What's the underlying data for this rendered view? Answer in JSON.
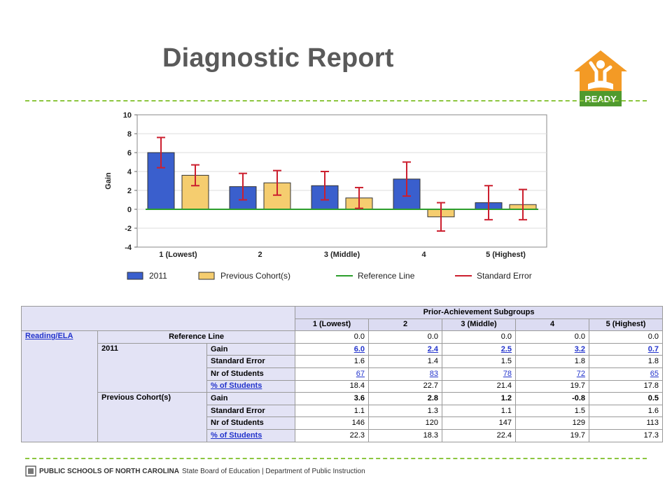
{
  "title": "Diagnostic Report",
  "logo_text": "READY",
  "colors": {
    "c2011": "#3a5fcd",
    "cPrev": "#f5cd6f",
    "ref": "#2c9e2c",
    "err": "#cc1f2e",
    "accent": "#8cc63f",
    "logo": "#f39a25"
  },
  "chart_data": {
    "type": "bar",
    "categories": [
      "1 (Lowest)",
      "2",
      "3 (Middle)",
      "4",
      "5 (Highest)"
    ],
    "ylabel": "Gain",
    "ylim": [
      -4,
      10
    ],
    "yticks": [
      "-4",
      "-2",
      "0",
      "2",
      "4",
      "6",
      "8",
      "10"
    ],
    "series": [
      {
        "name": "2011",
        "values": [
          6.0,
          2.4,
          2.5,
          3.2,
          0.7
        ],
        "error": [
          1.6,
          1.4,
          1.5,
          1.8,
          1.8
        ]
      },
      {
        "name": "Previous Cohort(s)",
        "values": [
          3.6,
          2.8,
          1.2,
          -0.8,
          0.5
        ],
        "error": [
          1.1,
          1.3,
          1.1,
          1.5,
          1.6
        ]
      }
    ],
    "legend": [
      "2011",
      "Previous Cohort(s)",
      "Reference Line",
      "Standard Error"
    ],
    "legend_position": "bottom"
  },
  "table": {
    "group_header": "Prior-Achievement Subgroups",
    "columns": [
      "1 (Lowest)",
      "2",
      "3 (Middle)",
      "4",
      "5 (Highest)"
    ],
    "subject": "Reading/ELA",
    "reference_label": "Reference Line",
    "reference": [
      "0.0",
      "0.0",
      "0.0",
      "0.0",
      "0.0"
    ],
    "cohort2011": {
      "label": "2011",
      "gain_label": "Gain",
      "gain": [
        "6.0",
        "2.4",
        "2.5",
        "3.2",
        "0.7"
      ],
      "se_label": "Standard Error",
      "se": [
        "1.6",
        "1.4",
        "1.5",
        "1.8",
        "1.8"
      ],
      "n_label": "Nr of Students",
      "n": [
        "67",
        "83",
        "78",
        "72",
        "65"
      ],
      "pct_label": "% of Students",
      "pct": [
        "18.4",
        "22.7",
        "21.4",
        "19.7",
        "17.8"
      ]
    },
    "previous": {
      "label": "Previous Cohort(s)",
      "gain_label": "Gain",
      "gain": [
        "3.6",
        "2.8",
        "1.2",
        "-0.8",
        "0.5"
      ],
      "se_label": "Standard Error",
      "se": [
        "1.1",
        "1.3",
        "1.1",
        "1.5",
        "1.6"
      ],
      "n_label": "Nr of Students",
      "n": [
        "146",
        "120",
        "147",
        "129",
        "113"
      ],
      "pct_label": "% of Students",
      "pct": [
        "22.3",
        "18.3",
        "22.4",
        "19.7",
        "17.3"
      ]
    }
  },
  "footer": {
    "org": "PUBLIC SCHOOLS OF NORTH CAROLINA",
    "rest": "State Board of Education | Department of Public Instruction"
  }
}
